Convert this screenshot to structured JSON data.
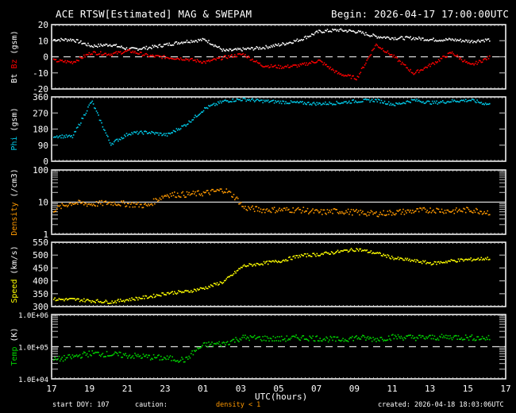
{
  "header": {
    "title": "ACE RTSW[Estimated] MAG & SWEPAM",
    "begin": "Begin: 2026-04-17 17:00:00UTC"
  },
  "footer": {
    "start_doy": "start DOY: 107",
    "caution_label": "caution:",
    "caution_value": "density < 1",
    "x_axis_label": "UTC(hours)",
    "created": "created: 2026-04-18 18:03:06UTC"
  },
  "colors": {
    "background": "#000000",
    "axes": "#ffffff",
    "bt": "#ffffff",
    "bz": "#ff0000",
    "phi": "#00c8e6",
    "density": "#ff9900",
    "speed": "#ffff00",
    "temp": "#00d200"
  },
  "chart_data": [
    {
      "type": "scatter",
      "title": "ACE RTSW[Estimated] MAG & SWEPAM",
      "panel": "Bt / Bz",
      "ylabel": "Bt Bz (gsm)",
      "ylabel_parts": [
        {
          "text": "Bt",
          "color": "#ffffff"
        },
        {
          "text": "Bz",
          "color": "#ff0000"
        },
        {
          "text": "(gsm)",
          "color": "#ffffff"
        }
      ],
      "ylim": [
        -20,
        20
      ],
      "yticks": [
        20,
        10,
        0,
        -10,
        -20
      ],
      "reference_line": 0,
      "x_hours": [
        0,
        1,
        2,
        3,
        4,
        5,
        6,
        7,
        8,
        9,
        10,
        11,
        12,
        13,
        14,
        15,
        16,
        17,
        18,
        19,
        20,
        21,
        22,
        23
      ],
      "series": [
        {
          "name": "Bt",
          "color": "#ffffff",
          "values": [
            11,
            11,
            7,
            8,
            5,
            6,
            8,
            10,
            11,
            4,
            5,
            6,
            8,
            11,
            16,
            17,
            16,
            13,
            12,
            12,
            11,
            11,
            10,
            11
          ]
        },
        {
          "name": "Bz",
          "color": "#ff0000",
          "values": [
            -2,
            -3,
            3,
            2,
            4,
            1,
            0,
            -1,
            -3,
            0,
            2,
            -5,
            -6,
            -5,
            -2,
            -10,
            -13,
            8,
            0,
            -10,
            -4,
            3,
            -5,
            0
          ]
        }
      ]
    },
    {
      "type": "scatter",
      "panel": "Phi",
      "ylabel": "Phi (gsm)",
      "ylim": [
        0,
        360
      ],
      "yticks": [
        360,
        270,
        180,
        90,
        0
      ],
      "x_hours": [
        0,
        1,
        2,
        3,
        4,
        5,
        6,
        7,
        8,
        9,
        10,
        11,
        12,
        13,
        14,
        15,
        16,
        17,
        18,
        19,
        20,
        21,
        22,
        23
      ],
      "series": [
        {
          "name": "Phi",
          "color": "#00c8e6",
          "values": [
            145,
            140,
            340,
            100,
            160,
            165,
            150,
            210,
            300,
            340,
            350,
            340,
            335,
            330,
            325,
            330,
            340,
            345,
            320,
            345,
            330,
            340,
            345,
            320
          ]
        }
      ]
    },
    {
      "type": "scatter",
      "panel": "Density",
      "ylabel": "Density (/cm3)",
      "yscale": "log",
      "ylim": [
        1,
        100
      ],
      "yticks": [
        100,
        10,
        1
      ],
      "reference_line": 10,
      "x_hours": [
        0,
        1,
        2,
        3,
        4,
        5,
        6,
        7,
        8,
        9,
        10,
        11,
        12,
        13,
        14,
        15,
        16,
        17,
        18,
        19,
        20,
        21,
        22,
        23
      ],
      "series": [
        {
          "name": "Density",
          "color": "#ff9900",
          "values": [
            6,
            10,
            9,
            10,
            9,
            8,
            18,
            18,
            20,
            25,
            7,
            6,
            6,
            6,
            5,
            5.5,
            5,
            4.5,
            5,
            5.5,
            6,
            5.5,
            6,
            5
          ]
        }
      ]
    },
    {
      "type": "scatter",
      "panel": "Speed",
      "ylabel": "Speed (km/s)",
      "ylim": [
        300,
        550
      ],
      "yticks": [
        550,
        500,
        450,
        400,
        350,
        300
      ],
      "x_hours": [
        0,
        1,
        2,
        3,
        4,
        5,
        6,
        7,
        8,
        9,
        10,
        11,
        12,
        13,
        14,
        15,
        16,
        17,
        18,
        19,
        20,
        21,
        22,
        23
      ],
      "series": [
        {
          "name": "Speed",
          "color": "#ffff00",
          "values": [
            330,
            330,
            325,
            320,
            330,
            340,
            355,
            360,
            375,
            400,
            460,
            470,
            480,
            500,
            505,
            515,
            525,
            510,
            490,
            480,
            470,
            480,
            485,
            490
          ]
        }
      ]
    },
    {
      "type": "scatter",
      "panel": "Temp",
      "ylabel": "Temp (K)",
      "yscale": "log",
      "ylim": [
        10000,
        1000000
      ],
      "yticks": [
        "1.0E+06",
        "1.0E+05",
        "1.0E+04"
      ],
      "reference_line": 100000,
      "x_hours": [
        0,
        1,
        2,
        3,
        4,
        5,
        6,
        7,
        8,
        9,
        10,
        11,
        12,
        13,
        14,
        15,
        16,
        17,
        18,
        19,
        20,
        21,
        22,
        23
      ],
      "series": [
        {
          "name": "Temp",
          "color": "#00d200",
          "values": [
            40000,
            50000,
            65000,
            60000,
            55000,
            50000,
            45000,
            40000,
            120000,
            130000,
            200000,
            190000,
            180000,
            200000,
            190000,
            170000,
            200000,
            180000,
            210000,
            200000,
            200000,
            210000,
            200000,
            190000
          ]
        }
      ]
    }
  ],
  "x_axis": {
    "label": "UTC(hours)",
    "tick_labels": [
      "17",
      "19",
      "21",
      "23",
      "01",
      "03",
      "05",
      "07",
      "09",
      "11",
      "13",
      "15",
      "17"
    ]
  }
}
